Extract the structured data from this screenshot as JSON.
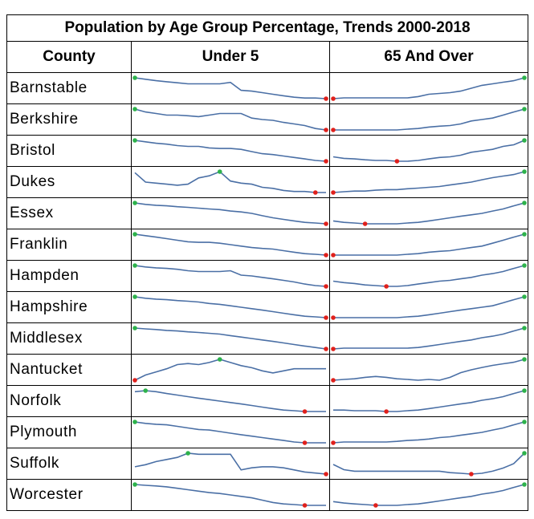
{
  "title": "Population by Age Group Percentage, Trends 2000-2018",
  "headers": {
    "county": "County",
    "under5": "Under 5",
    "over65": "65 And Over"
  },
  "colors": {
    "line": "#4a6fa5",
    "max_marker": "#2db24b",
    "min_marker": "#e0201b"
  },
  "chart_data": {
    "type": "line",
    "subtype": "sparklines",
    "title": "Population by Age Group Percentage, Trends 2000-2018",
    "x": [
      "2000",
      "2001",
      "2002",
      "2003",
      "2004",
      "2005",
      "2006",
      "2007",
      "2008",
      "2009",
      "2010",
      "2011",
      "2012",
      "2013",
      "2014",
      "2015",
      "2016",
      "2017",
      "2018"
    ],
    "series_groups": [
      "Under 5",
      "65 And Over"
    ],
    "rows": [
      {
        "county": "Barnstable",
        "under5": [
          1.0,
          0.93,
          0.86,
          0.81,
          0.76,
          0.71,
          0.71,
          0.71,
          0.71,
          0.78,
          0.4,
          0.36,
          0.29,
          0.21,
          0.14,
          0.07,
          0.03,
          0.03,
          0.0
        ],
        "over65": [
          0.0,
          0.04,
          0.04,
          0.04,
          0.04,
          0.04,
          0.04,
          0.04,
          0.1,
          0.21,
          0.25,
          0.29,
          0.36,
          0.5,
          0.64,
          0.71,
          0.79,
          0.86,
          1.0
        ]
      },
      {
        "county": "Berkshire",
        "under5": [
          1.0,
          0.86,
          0.79,
          0.71,
          0.71,
          0.68,
          0.64,
          0.71,
          0.79,
          0.79,
          0.79,
          0.57,
          0.5,
          0.46,
          0.36,
          0.29,
          0.21,
          0.07,
          0.0
        ],
        "over65": [
          0.0,
          0.0,
          0.0,
          0.0,
          0.0,
          0.0,
          0.0,
          0.04,
          0.07,
          0.14,
          0.18,
          0.21,
          0.29,
          0.43,
          0.5,
          0.57,
          0.71,
          0.86,
          1.0
        ]
      },
      {
        "county": "Bristol",
        "under5": [
          1.0,
          0.93,
          0.86,
          0.82,
          0.75,
          0.71,
          0.71,
          0.64,
          0.61,
          0.61,
          0.57,
          0.46,
          0.36,
          0.32,
          0.25,
          0.18,
          0.11,
          0.04,
          0.0
        ],
        "over65": [
          0.21,
          0.14,
          0.11,
          0.07,
          0.04,
          0.04,
          0.0,
          0.0,
          0.04,
          0.11,
          0.18,
          0.21,
          0.29,
          0.43,
          0.5,
          0.57,
          0.71,
          0.79,
          1.0
        ]
      },
      {
        "county": "Dukes",
        "under5": [
          0.95,
          0.5,
          0.45,
          0.4,
          0.35,
          0.4,
          0.7,
          0.8,
          1.0,
          0.55,
          0.45,
          0.4,
          0.25,
          0.2,
          0.1,
          0.05,
          0.05,
          0.0,
          0.0
        ],
        "over65": [
          0.0,
          0.04,
          0.07,
          0.07,
          0.11,
          0.14,
          0.14,
          0.18,
          0.21,
          0.25,
          0.29,
          0.36,
          0.43,
          0.5,
          0.61,
          0.71,
          0.79,
          0.86,
          1.0
        ]
      },
      {
        "county": "Essex",
        "under5": [
          1.0,
          0.93,
          0.89,
          0.86,
          0.82,
          0.79,
          0.75,
          0.71,
          0.68,
          0.61,
          0.57,
          0.5,
          0.39,
          0.29,
          0.21,
          0.14,
          0.07,
          0.04,
          0.0
        ],
        "over65": [
          0.14,
          0.07,
          0.04,
          0.0,
          0.0,
          0.0,
          0.0,
          0.04,
          0.07,
          0.14,
          0.21,
          0.29,
          0.36,
          0.43,
          0.5,
          0.61,
          0.71,
          0.86,
          1.0
        ]
      },
      {
        "county": "Franklin",
        "under5": [
          1.0,
          0.93,
          0.86,
          0.79,
          0.71,
          0.64,
          0.61,
          0.61,
          0.57,
          0.5,
          0.43,
          0.36,
          0.32,
          0.29,
          0.21,
          0.14,
          0.07,
          0.04,
          0.0
        ],
        "over65": [
          0.0,
          0.0,
          0.0,
          0.0,
          0.0,
          0.0,
          0.0,
          0.04,
          0.07,
          0.14,
          0.18,
          0.21,
          0.29,
          0.36,
          0.43,
          0.57,
          0.71,
          0.86,
          1.0
        ]
      },
      {
        "county": "Hampden",
        "under5": [
          1.0,
          0.93,
          0.89,
          0.86,
          0.82,
          0.75,
          0.71,
          0.71,
          0.71,
          0.75,
          0.54,
          0.5,
          0.43,
          0.36,
          0.29,
          0.21,
          0.11,
          0.04,
          0.0
        ],
        "over65": [
          0.25,
          0.18,
          0.14,
          0.07,
          0.04,
          0.0,
          0.0,
          0.04,
          0.11,
          0.18,
          0.25,
          0.29,
          0.36,
          0.43,
          0.54,
          0.61,
          0.71,
          0.86,
          1.0
        ]
      },
      {
        "county": "Hampshire",
        "under5": [
          1.0,
          0.93,
          0.89,
          0.86,
          0.82,
          0.79,
          0.75,
          0.68,
          0.64,
          0.57,
          0.5,
          0.43,
          0.36,
          0.29,
          0.21,
          0.14,
          0.07,
          0.04,
          0.0
        ],
        "over65": [
          0.0,
          0.0,
          0.0,
          0.0,
          0.0,
          0.0,
          0.0,
          0.04,
          0.07,
          0.14,
          0.21,
          0.29,
          0.36,
          0.43,
          0.5,
          0.57,
          0.71,
          0.86,
          1.0
        ]
      },
      {
        "county": "Middlesex",
        "under5": [
          1.0,
          0.96,
          0.93,
          0.89,
          0.86,
          0.82,
          0.79,
          0.75,
          0.71,
          0.64,
          0.57,
          0.5,
          0.43,
          0.36,
          0.29,
          0.21,
          0.14,
          0.07,
          0.0
        ],
        "over65": [
          0.0,
          0.04,
          0.04,
          0.04,
          0.04,
          0.04,
          0.04,
          0.04,
          0.07,
          0.14,
          0.21,
          0.29,
          0.36,
          0.43,
          0.54,
          0.61,
          0.71,
          0.86,
          1.0
        ]
      },
      {
        "county": "Nantucket",
        "under5": [
          0.0,
          0.25,
          0.4,
          0.55,
          0.75,
          0.8,
          0.75,
          0.85,
          1.0,
          0.85,
          0.7,
          0.6,
          0.45,
          0.35,
          0.45,
          0.55,
          0.55,
          0.55,
          0.55
        ],
        "over65": [
          0.0,
          0.04,
          0.07,
          0.14,
          0.18,
          0.14,
          0.07,
          0.04,
          0.0,
          0.04,
          0.0,
          0.14,
          0.36,
          0.5,
          0.61,
          0.71,
          0.79,
          0.86,
          1.0
        ]
      },
      {
        "county": "Norfolk",
        "under5": [
          0.95,
          1.0,
          0.95,
          0.86,
          0.79,
          0.71,
          0.64,
          0.57,
          0.5,
          0.43,
          0.36,
          0.29,
          0.21,
          0.14,
          0.07,
          0.04,
          0.0,
          0.0,
          0.0
        ],
        "over65": [
          0.07,
          0.07,
          0.04,
          0.04,
          0.04,
          0.0,
          0.0,
          0.04,
          0.07,
          0.14,
          0.21,
          0.29,
          0.36,
          0.43,
          0.54,
          0.61,
          0.71,
          0.86,
          1.0
        ]
      },
      {
        "county": "Plymouth",
        "under5": [
          1.0,
          0.93,
          0.89,
          0.86,
          0.79,
          0.71,
          0.64,
          0.61,
          0.54,
          0.46,
          0.39,
          0.32,
          0.25,
          0.18,
          0.11,
          0.04,
          0.0,
          0.0,
          0.0
        ],
        "over65": [
          0.0,
          0.04,
          0.04,
          0.04,
          0.04,
          0.04,
          0.07,
          0.11,
          0.14,
          0.18,
          0.25,
          0.29,
          0.36,
          0.43,
          0.5,
          0.61,
          0.71,
          0.86,
          1.0
        ]
      },
      {
        "county": "Suffolk",
        "under5": [
          0.35,
          0.45,
          0.6,
          0.7,
          0.8,
          1.0,
          0.95,
          0.95,
          0.95,
          0.95,
          0.2,
          0.3,
          0.35,
          0.35,
          0.3,
          0.2,
          0.1,
          0.05,
          0.0
        ],
        "over65": [
          0.46,
          0.21,
          0.14,
          0.14,
          0.14,
          0.14,
          0.14,
          0.14,
          0.14,
          0.14,
          0.14,
          0.07,
          0.04,
          0.0,
          0.04,
          0.14,
          0.29,
          0.5,
          1.0
        ]
      },
      {
        "county": "Worcester",
        "under5": [
          1.0,
          0.96,
          0.93,
          0.89,
          0.82,
          0.75,
          0.68,
          0.61,
          0.57,
          0.5,
          0.43,
          0.36,
          0.25,
          0.14,
          0.07,
          0.04,
          0.0,
          0.0,
          0.0
        ],
        "over65": [
          0.18,
          0.11,
          0.07,
          0.04,
          0.0,
          0.0,
          0.0,
          0.04,
          0.07,
          0.14,
          0.21,
          0.29,
          0.36,
          0.43,
          0.54,
          0.61,
          0.71,
          0.86,
          1.0
        ]
      }
    ]
  }
}
